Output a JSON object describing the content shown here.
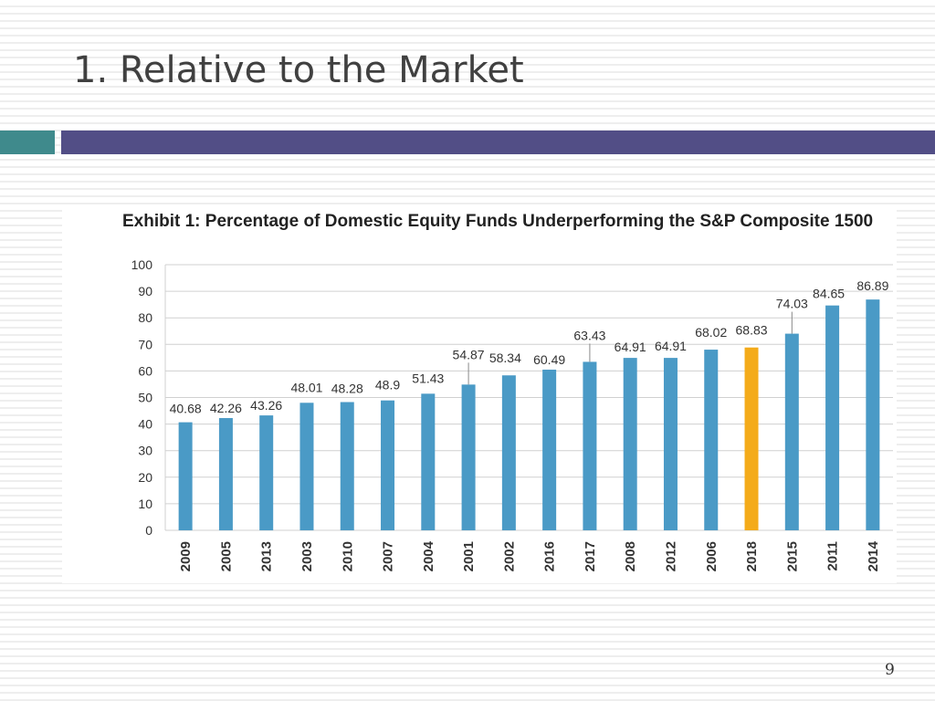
{
  "slide": {
    "title": "1. Relative to the Market",
    "page_number": "9"
  },
  "colors": {
    "accent_teal": "#3f8a8c",
    "accent_purple": "#524e86",
    "bar": "#4a9ac6",
    "highlight_bar": "#f4ab1a"
  },
  "chart_data": {
    "type": "bar",
    "title": "Exhibit 1: Percentage of Domestic Equity Funds Underperforming the S&P Composite 1500",
    "categories": [
      "2009",
      "2005",
      "2013",
      "2003",
      "2010",
      "2007",
      "2004",
      "2001",
      "2002",
      "2016",
      "2017",
      "2008",
      "2012",
      "2006",
      "2018",
      "2015",
      "2011",
      "2014"
    ],
    "values": [
      40.68,
      42.26,
      43.26,
      48.01,
      48.28,
      48.9,
      51.43,
      54.87,
      58.34,
      60.49,
      63.43,
      64.91,
      64.91,
      68.02,
      68.83,
      74.03,
      84.65,
      86.89
    ],
    "data_labels": [
      "40.68",
      "42.26",
      "43.26",
      "48.01",
      "48.28",
      "48.9",
      "51.43",
      "54.87",
      "58.34",
      "60.49",
      "63.43",
      "64.91",
      "64.91",
      "68.02",
      "68.83",
      "74.03",
      "84.65",
      "86.89"
    ],
    "highlight_category": "2018",
    "ylim": [
      0,
      100
    ],
    "yticks": [
      "0",
      "10",
      "20",
      "30",
      "40",
      "50",
      "60",
      "70",
      "80",
      "90",
      "100"
    ],
    "xlabel": "",
    "ylabel": "",
    "grid": true,
    "legend": "none"
  }
}
